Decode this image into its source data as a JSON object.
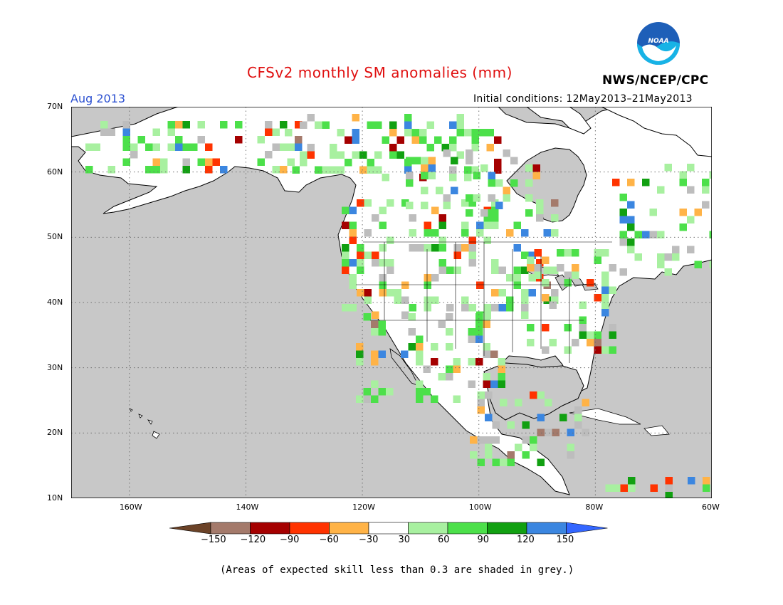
{
  "header": {
    "title": "CFSv2 monthly SM anomalies (mm)",
    "valid_month": "Aug 2013",
    "initial_conditions": "Initial conditions: 12May2013–21May2013",
    "agency": "NWS/NCEP/CPC",
    "logo_text": "NOAA"
  },
  "map": {
    "lat_labels": [
      "70N",
      "60N",
      "50N",
      "40N",
      "30N",
      "20N",
      "10N"
    ],
    "lon_labels": [
      "160W",
      "140W",
      "120W",
      "100W",
      "80W",
      "60W"
    ],
    "lat_values": [
      70,
      60,
      50,
      40,
      30,
      20,
      10
    ],
    "lon_values": [
      -160,
      -140,
      -120,
      -100,
      -80,
      -60
    ],
    "extent": {
      "lon_min": -170,
      "lon_max": -60,
      "lat_min": 10,
      "lat_max": 70
    },
    "colors": {
      "ocean": "#c8c8c8",
      "land": "#ffffff",
      "grid": "#6e6e6e",
      "coast": "#000000"
    }
  },
  "legend": {
    "boundaries": [
      "−150",
      "−120",
      "−90",
      "−60",
      "−30",
      "30",
      "60",
      "90",
      "120",
      "150"
    ],
    "colors": [
      "#6b4227",
      "#a47a6b",
      "#a50000",
      "#ff3300",
      "#ffb347",
      "#ffffff",
      "#a8f0a0",
      "#4ce04a",
      "#11a011",
      "#3b86e0",
      "#3366ff"
    ],
    "note": "(Areas of expected skill less than 0.3 are shaded in grey.)"
  }
}
